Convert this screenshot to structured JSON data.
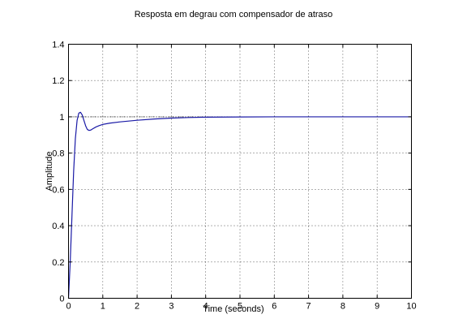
{
  "chart_data": {
    "type": "line",
    "title": "Resposta em degrau com compensador de atraso",
    "xlabel": "Time (seconds)",
    "ylabel": "Amplitude",
    "xlim": [
      0,
      10
    ],
    "ylim": [
      0,
      1.4
    ],
    "xticks": [
      "0",
      "1",
      "2",
      "3",
      "4",
      "5",
      "6",
      "7",
      "8",
      "9",
      "10"
    ],
    "yticks": [
      "0",
      "0.2",
      "0.4",
      "0.6",
      "0.8",
      "1",
      "1.2",
      "1.4"
    ],
    "grid": true,
    "reference_line": {
      "y": 1
    },
    "colors": {
      "series": "#1a1aa6",
      "reference": "#000000"
    },
    "series": [
      {
        "x": [
          0,
          0.05,
          0.1,
          0.15,
          0.2,
          0.25,
          0.3,
          0.35,
          0.4,
          0.45,
          0.5,
          0.55,
          0.6,
          0.65,
          0.7,
          0.8,
          0.9,
          1.0,
          1.2,
          1.5,
          2.0,
          2.5,
          3.0,
          3.5,
          4.0,
          5.0,
          6.0,
          7.0,
          8.0,
          9.0,
          10.0
        ],
        "y": [
          0,
          0.2,
          0.45,
          0.7,
          0.88,
          0.98,
          1.02,
          1.025,
          1.01,
          0.98,
          0.95,
          0.93,
          0.925,
          0.927,
          0.933,
          0.944,
          0.952,
          0.958,
          0.965,
          0.972,
          0.981,
          0.988,
          0.993,
          0.996,
          0.998,
          0.999,
          1.0,
          1.0,
          1.0,
          1.0,
          1.0
        ]
      }
    ]
  }
}
